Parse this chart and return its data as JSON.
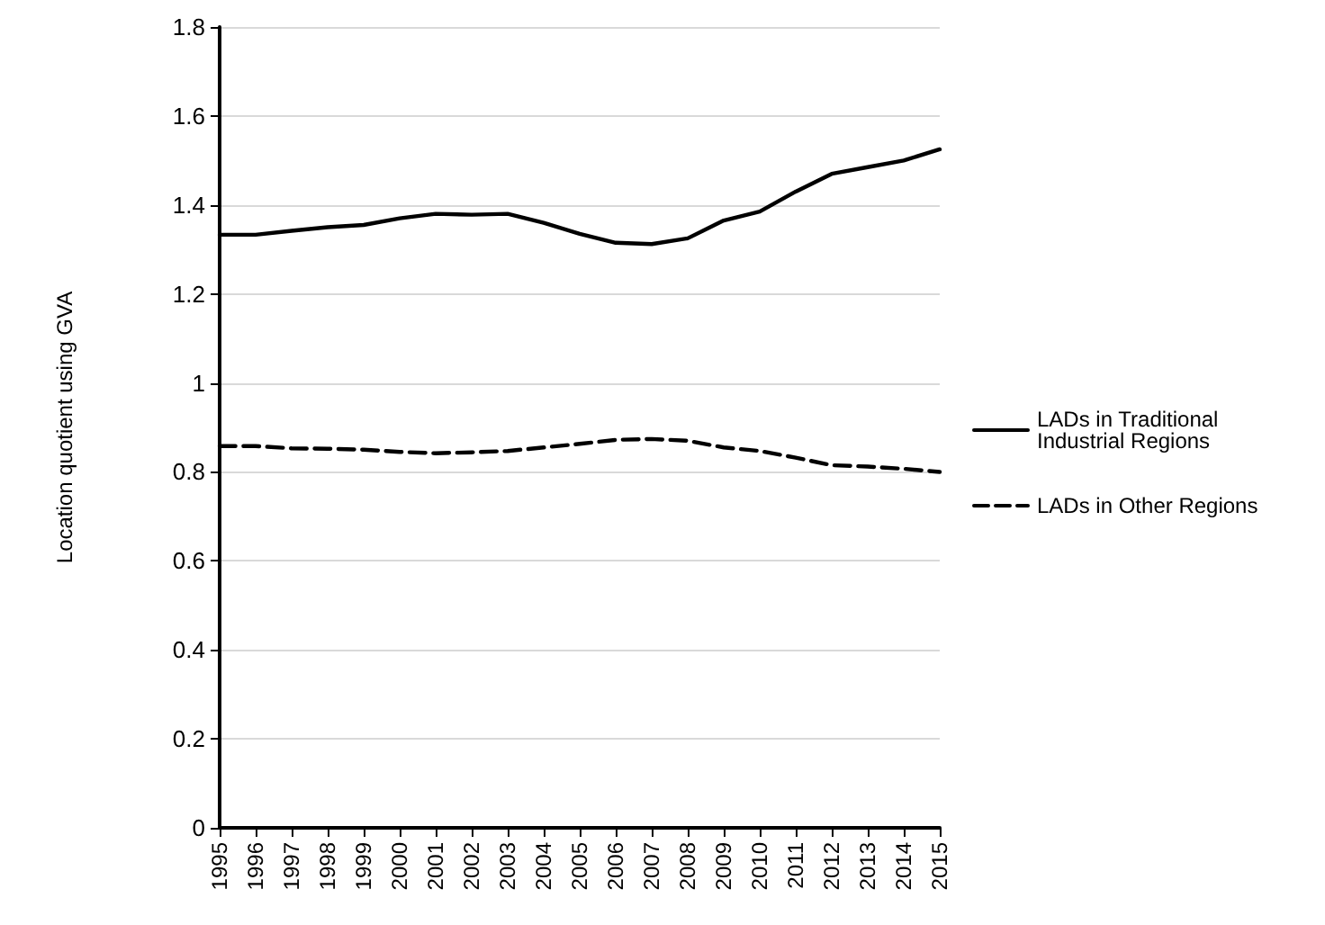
{
  "chart_data": {
    "type": "line",
    "ylabel": "Location quotient using GVA",
    "categories": [
      "1995",
      "1996",
      "1997",
      "1998",
      "1999",
      "2000",
      "2001",
      "2002",
      "2003",
      "2004",
      "2005",
      "2006",
      "2007",
      "2008",
      "2009",
      "2010",
      "2011",
      "2012",
      "2013",
      "2014",
      "2015"
    ],
    "series": [
      {
        "name": "LADs in Traditional Industrial Regions",
        "color": "#000000",
        "line_style": "solid",
        "values": [
          1.333,
          1.333,
          1.342,
          1.35,
          1.355,
          1.37,
          1.38,
          1.378,
          1.38,
          1.36,
          1.335,
          1.315,
          1.312,
          1.325,
          1.365,
          1.385,
          1.43,
          1.47,
          1.485,
          1.5,
          1.525
        ]
      },
      {
        "name": "LADs in Other Regions",
        "color": "#000000",
        "line_style": "dashed",
        "values": [
          0.858,
          0.858,
          0.853,
          0.852,
          0.85,
          0.845,
          0.842,
          0.844,
          0.847,
          0.855,
          0.863,
          0.872,
          0.874,
          0.87,
          0.855,
          0.847,
          0.832,
          0.815,
          0.812,
          0.807,
          0.8
        ]
      }
    ],
    "ylim": [
      0,
      1.8
    ],
    "yticks": [
      0,
      0.2,
      0.4,
      0.6,
      0.8,
      1,
      1.2,
      1.4,
      1.6,
      1.8
    ],
    "grid": "y",
    "legend": "right",
    "marker": "none"
  }
}
